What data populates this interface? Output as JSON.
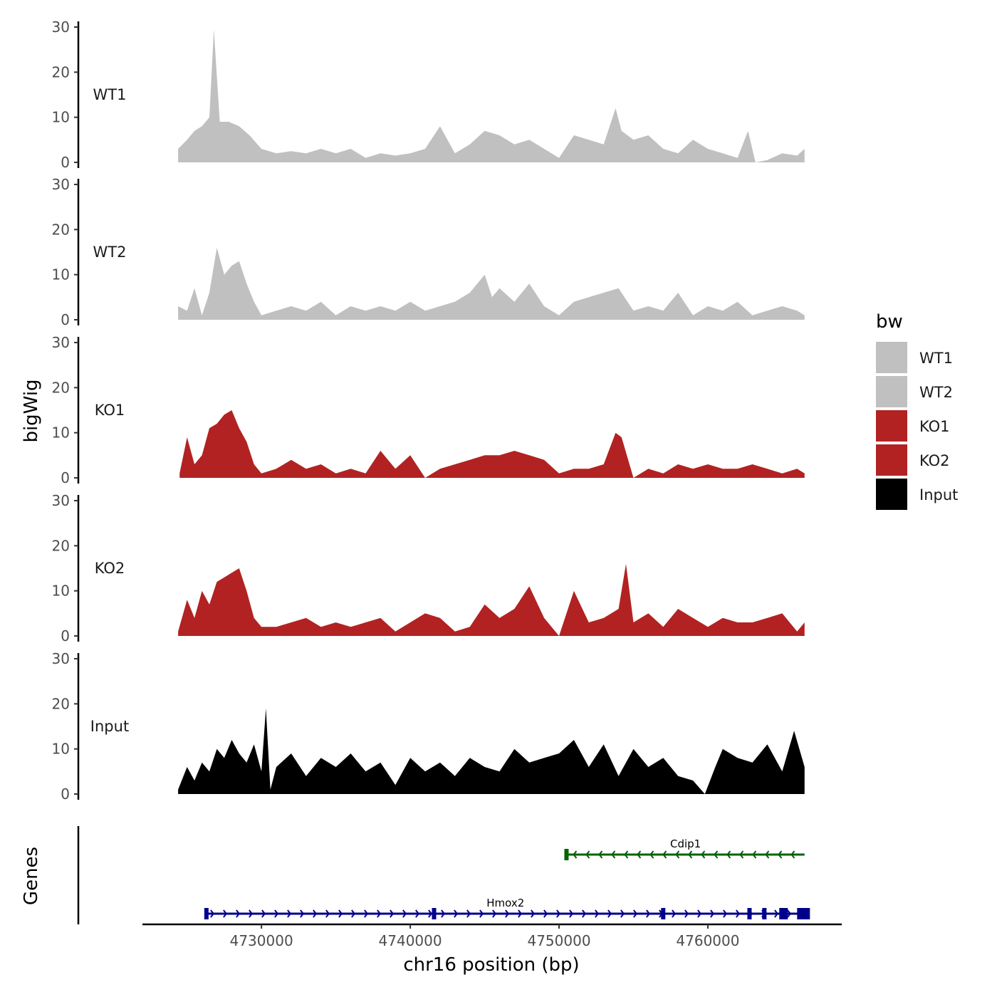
{
  "chart_data": {
    "type": "area",
    "title": "",
    "ylabel": "bigWig",
    "xlabel": "chr16 position (bp)",
    "xlim": [
      4722000,
      4769000
    ],
    "ylim": [
      0,
      30
    ],
    "y_ticks": [
      0,
      10,
      20,
      30
    ],
    "x_ticks": [
      4730000,
      4740000,
      4750000,
      4760000
    ],
    "legend": {
      "title": "bw",
      "position": "right",
      "entries": [
        {
          "label": "WT1",
          "color": "#c0c0c0"
        },
        {
          "label": "WT2",
          "color": "#c0c0c0"
        },
        {
          "label": "KO1",
          "color": "#b22222"
        },
        {
          "label": "KO2",
          "color": "#b22222"
        },
        {
          "label": "Input",
          "color": "#000000"
        }
      ]
    },
    "series": [
      {
        "name": "WT1",
        "color": "#c0c0c0",
        "x": [
          4724400,
          4725000,
          4725500,
          4726000,
          4726500,
          4726800,
          4727200,
          4727800,
          4728500,
          4729200,
          4730000,
          4731000,
          4732000,
          4733000,
          4734000,
          4735000,
          4736000,
          4737000,
          4738000,
          4739000,
          4740000,
          4741000,
          4742000,
          4743000,
          4744000,
          4745000,
          4746000,
          4747000,
          4748000,
          4749000,
          4750000,
          4751000,
          4752000,
          4753000,
          4753800,
          4754200,
          4755000,
          4756000,
          4757000,
          4758000,
          4759000,
          4760000,
          4761000,
          4762000,
          4762700,
          4763200,
          4764000,
          4765000,
          4766000,
          4766500
        ],
        "values": [
          3,
          5,
          7,
          8,
          10,
          29.5,
          9,
          9,
          8,
          6,
          3,
          2,
          2.5,
          2,
          3,
          2,
          3,
          1,
          2,
          1.5,
          2,
          3,
          8,
          2,
          4,
          7,
          6,
          4,
          5,
          3,
          1,
          6,
          5,
          4,
          12,
          7,
          5,
          6,
          3,
          2,
          5,
          3,
          2,
          1,
          7,
          0,
          0.5,
          2,
          1.5,
          3
        ]
      },
      {
        "name": "WT2",
        "color": "#c0c0c0",
        "x": [
          4724400,
          4725000,
          4725500,
          4726000,
          4726500,
          4727000,
          4727500,
          4728000,
          4728500,
          4729000,
          4729500,
          4730000,
          4731000,
          4732000,
          4733000,
          4734000,
          4735000,
          4736000,
          4737000,
          4738000,
          4739000,
          4740000,
          4741000,
          4742000,
          4743000,
          4744000,
          4745000,
          4745500,
          4746000,
          4747000,
          4748000,
          4749000,
          4750000,
          4751000,
          4752000,
          4753000,
          4754000,
          4755000,
          4756000,
          4757000,
          4758000,
          4759000,
          4760000,
          4761000,
          4762000,
          4763000,
          4764000,
          4765000,
          4766000,
          4766500
        ],
        "values": [
          3,
          2,
          7,
          1,
          6,
          16,
          10,
          12,
          13,
          8,
          4,
          1,
          2,
          3,
          2,
          4,
          1,
          3,
          2,
          3,
          2,
          4,
          2,
          3,
          4,
          6,
          10,
          5,
          7,
          4,
          8,
          3,
          1,
          4,
          5,
          6,
          7,
          2,
          3,
          2,
          6,
          1,
          3,
          2,
          4,
          1,
          2,
          3,
          2,
          1
        ]
      },
      {
        "name": "KO1",
        "color": "#b22222",
        "x": [
          4724500,
          4725000,
          4725500,
          4726000,
          4726500,
          4727000,
          4727500,
          4728000,
          4728500,
          4729000,
          4729500,
          4730000,
          4731000,
          4732000,
          4733000,
          4734000,
          4735000,
          4736000,
          4737000,
          4738000,
          4739000,
          4740000,
          4741000,
          4742000,
          4743000,
          4744000,
          4745000,
          4746000,
          4747000,
          4748000,
          4749000,
          4750000,
          4751000,
          4752000,
          4753000,
          4753800,
          4754200,
          4755000,
          4756000,
          4757000,
          4758000,
          4759000,
          4760000,
          4761000,
          4762000,
          4763000,
          4764000,
          4765000,
          4766000,
          4766500
        ],
        "values": [
          1,
          9,
          3,
          5,
          11,
          12,
          14,
          15,
          11,
          8,
          3,
          1,
          2,
          4,
          2,
          3,
          1,
          2,
          1,
          6,
          2,
          5,
          0,
          2,
          3,
          4,
          5,
          5,
          6,
          5,
          4,
          1,
          2,
          2,
          3,
          10,
          9,
          0,
          2,
          1,
          3,
          2,
          3,
          2,
          2,
          3,
          2,
          1,
          2,
          1
        ]
      },
      {
        "name": "KO2",
        "color": "#b22222",
        "x": [
          4724400,
          4725000,
          4725500,
          4726000,
          4726500,
          4727000,
          4727500,
          4728000,
          4728500,
          4729000,
          4729500,
          4730000,
          4731000,
          4732000,
          4733000,
          4734000,
          4735000,
          4736000,
          4737000,
          4738000,
          4739000,
          4740000,
          4741000,
          4742000,
          4743000,
          4744000,
          4745000,
          4746000,
          4747000,
          4748000,
          4749000,
          4750000,
          4751000,
          4752000,
          4753000,
          4754000,
          4754500,
          4755000,
          4756000,
          4757000,
          4758000,
          4759000,
          4760000,
          4761000,
          4762000,
          4763000,
          4764000,
          4765000,
          4766000,
          4766500
        ],
        "values": [
          1,
          8,
          4,
          10,
          7,
          12,
          13,
          14,
          15,
          10,
          4,
          2,
          2,
          3,
          4,
          2,
          3,
          2,
          3,
          4,
          1,
          3,
          5,
          4,
          1,
          2,
          7,
          4,
          6,
          11,
          4,
          0,
          10,
          3,
          4,
          6,
          16,
          3,
          5,
          2,
          6,
          4,
          2,
          4,
          3,
          3,
          4,
          5,
          1,
          3
        ]
      },
      {
        "name": "Input",
        "color": "#000000",
        "x": [
          4724400,
          4725000,
          4725500,
          4726000,
          4726500,
          4727000,
          4727500,
          4728000,
          4728500,
          4729000,
          4729500,
          4730000,
          4730300,
          4730600,
          4731000,
          4732000,
          4733000,
          4734000,
          4735000,
          4736000,
          4737000,
          4738000,
          4739000,
          4740000,
          4741000,
          4742000,
          4743000,
          4744000,
          4745000,
          4746000,
          4747000,
          4748000,
          4749000,
          4750000,
          4751000,
          4752000,
          4753000,
          4754000,
          4755000,
          4756000,
          4757000,
          4758000,
          4759000,
          4759800,
          4760500,
          4761000,
          4762000,
          4763000,
          4764000,
          4765000,
          4765800,
          4766500
        ],
        "values": [
          1,
          6,
          3,
          7,
          5,
          10,
          8,
          12,
          9,
          7,
          11,
          5,
          19,
          1,
          6,
          9,
          4,
          8,
          6,
          9,
          5,
          7,
          2,
          8,
          5,
          7,
          4,
          8,
          6,
          5,
          10,
          7,
          8,
          9,
          12,
          6,
          11,
          4,
          10,
          6,
          8,
          4,
          3,
          0,
          6,
          10,
          8,
          7,
          11,
          5,
          14,
          6
        ]
      }
    ],
    "genes": [
      {
        "name": "Cdip1",
        "start": 4750500,
        "end": 4766500,
        "strand": "-",
        "color": "#006400",
        "exons": [
          4750500
        ]
      },
      {
        "name": "Hmox2",
        "start": 4726300,
        "end": 4766500,
        "strand": "+",
        "color": "#00008b",
        "exons": [
          4726300,
          4741600,
          4757000,
          4762800,
          4763800,
          4765000,
          4766200
        ]
      }
    ],
    "genes_label": "Genes"
  }
}
